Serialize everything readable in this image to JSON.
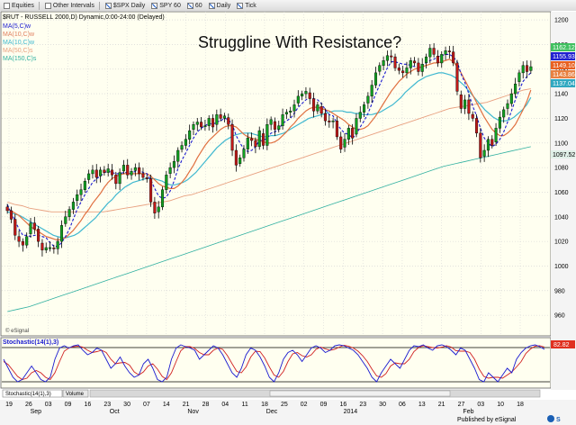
{
  "toolbar": {
    "items": [
      {
        "label": "Equities",
        "icon": "equities-icon"
      },
      {
        "label": "Other Intervals",
        "icon": "intervals-icon"
      },
      {
        "label": "$SPX Daily",
        "icon": "chart-icon"
      },
      {
        "label": "SPY 60",
        "icon": "chart-icon"
      },
      {
        "label": "60",
        "icon": "chart-icon"
      },
      {
        "label": "Daily",
        "icon": "chart-icon"
      },
      {
        "label": "Tick",
        "icon": "chart-icon"
      }
    ]
  },
  "header": {
    "symbol_line": "$RUT - RUSSELL 2000,D) Dynamic,0:00-24:00 (Delayed)"
  },
  "legend": [
    {
      "label": "MA(5,C)w",
      "color": "#1a1ad0"
    },
    {
      "label": "MA(10,C)w",
      "color": "#e08060"
    },
    {
      "label": "MA(10,C)w",
      "color": "#40b8d0"
    },
    {
      "label": "MA(50,C)s",
      "color": "#e8a080"
    },
    {
      "label": "MA(150,C)s",
      "color": "#30b0a0"
    }
  ],
  "price_tags": [
    {
      "value": "1162.12",
      "color": "#40c060"
    },
    {
      "value": "1155.93",
      "color": "#2020d0"
    },
    {
      "value": "1149.10",
      "color": "#e86020"
    },
    {
      "value": "1143.86",
      "color": "#e88040"
    },
    {
      "value": "1137.04",
      "color": "#30a8c0"
    },
    {
      "value": "1097.52",
      "color": "#e0f0e8"
    }
  ],
  "stoch": {
    "title": "Stochastic(14(1),3)",
    "last_value": "82.82",
    "tabs": [
      "Stochastic(14(1),3)",
      "Volume"
    ]
  },
  "footer": {
    "published": "Published by eSignal",
    "copyright": "© eSignal"
  },
  "chart_data": {
    "type": "candlestick",
    "title": "Struggline With Resistance?",
    "ylim": [
      944,
      1203
    ],
    "y_ticks": [
      1200,
      1180,
      1160,
      1140,
      1120,
      1100,
      1080,
      1060,
      1040,
      1020,
      1000,
      980,
      960
    ],
    "x_tick_labels": [
      "19",
      "26",
      "03",
      "09",
      "16",
      "23",
      "30",
      "07",
      "14",
      "21",
      "28",
      "04",
      "11",
      "18",
      "25",
      "02",
      "09",
      "16",
      "23",
      "30",
      "06",
      "13",
      "21",
      "27",
      "03",
      "10",
      "18"
    ],
    "x_period_labels": [
      "Sep",
      "Oct",
      "Nov",
      "Dec",
      "2014",
      "Feb"
    ],
    "close": [
      1045,
      1038,
      1025,
      1020,
      1017,
      1024,
      1035,
      1030,
      1020,
      1013,
      1015,
      1015,
      1014,
      1020,
      1033,
      1040,
      1046,
      1052,
      1058,
      1062,
      1069,
      1075,
      1078,
      1072,
      1078,
      1076,
      1079,
      1074,
      1067,
      1076,
      1082,
      1074,
      1077,
      1080,
      1075,
      1072,
      1071,
      1052,
      1043,
      1048,
      1062,
      1074,
      1080,
      1085,
      1094,
      1098,
      1103,
      1110,
      1115,
      1117,
      1113,
      1114,
      1120,
      1113,
      1123,
      1120,
      1122,
      1115,
      1094,
      1082,
      1088,
      1095,
      1104,
      1102,
      1097,
      1110,
      1098,
      1115,
      1119,
      1111,
      1114,
      1123,
      1125,
      1126,
      1131,
      1138,
      1140,
      1142,
      1136,
      1126,
      1131,
      1124,
      1118,
      1117,
      1118,
      1105,
      1095,
      1103,
      1112,
      1104,
      1120,
      1125,
      1131,
      1138,
      1147,
      1157,
      1163,
      1167,
      1171,
      1170,
      1161,
      1159,
      1157,
      1161,
      1167,
      1165,
      1158,
      1164,
      1170,
      1177,
      1172,
      1165,
      1172,
      1175,
      1174,
      1165,
      1142,
      1128,
      1135,
      1124,
      1120,
      1108,
      1088,
      1094,
      1103,
      1098,
      1112,
      1121,
      1127,
      1132,
      1140,
      1148,
      1157,
      1163,
      1158,
      1162
    ],
    "ma5": [
      1050,
      1043,
      1037,
      1030,
      1025,
      1025,
      1024,
      1025,
      1025,
      1024,
      1023,
      1019,
      1016,
      1016,
      1019,
      1024,
      1030,
      1038,
      1046,
      1052,
      1058,
      1063,
      1068,
      1071,
      1073,
      1076,
      1077,
      1076,
      1075,
      1075,
      1076,
      1076,
      1075,
      1077,
      1078,
      1076,
      1075,
      1070,
      1063,
      1057,
      1055,
      1056,
      1061,
      1069,
      1079,
      1086,
      1092,
      1098,
      1104,
      1109,
      1112,
      1114,
      1116,
      1115,
      1117,
      1118,
      1120,
      1119,
      1115,
      1106,
      1100,
      1095,
      1093,
      1094,
      1097,
      1102,
      1102,
      1104,
      1108,
      1109,
      1111,
      1116,
      1118,
      1120,
      1124,
      1129,
      1132,
      1135,
      1137,
      1136,
      1135,
      1132,
      1127,
      1123,
      1122,
      1116,
      1111,
      1108,
      1107,
      1104,
      1107,
      1113,
      1118,
      1124,
      1132,
      1140,
      1147,
      1154,
      1161,
      1166,
      1166,
      1165,
      1164,
      1164,
      1163,
      1162,
      1162,
      1163,
      1165,
      1167,
      1168,
      1170,
      1171,
      1172,
      1172,
      1170,
      1166,
      1156,
      1149,
      1140,
      1130,
      1122,
      1112,
      1104,
      1100,
      1097,
      1099,
      1103,
      1109,
      1117,
      1126,
      1135,
      1143,
      1150,
      1154,
      1157
    ],
    "ma10": [
      1046,
      1045,
      1043,
      1041,
      1038,
      1035,
      1032,
      1030,
      1028,
      1026,
      1024,
      1023,
      1022,
      1021,
      1022,
      1023,
      1026,
      1029,
      1033,
      1037,
      1042,
      1046,
      1051,
      1055,
      1059,
      1064,
      1068,
      1071,
      1073,
      1074,
      1075,
      1075,
      1075,
      1075,
      1075,
      1075,
      1075,
      1073,
      1070,
      1067,
      1065,
      1064,
      1063,
      1063,
      1065,
      1068,
      1072,
      1077,
      1082,
      1088,
      1093,
      1098,
      1102,
      1105,
      1108,
      1111,
      1113,
      1114,
      1114,
      1113,
      1110,
      1107,
      1105,
      1104,
      1103,
      1102,
      1101,
      1100,
      1100,
      1101,
      1103,
      1106,
      1109,
      1113,
      1116,
      1120,
      1123,
      1126,
      1128,
      1129,
      1129,
      1128,
      1127,
      1126,
      1124,
      1122,
      1120,
      1118,
      1115,
      1113,
      1111,
      1111,
      1112,
      1114,
      1118,
      1122,
      1127,
      1132,
      1137,
      1142,
      1146,
      1150,
      1153,
      1156,
      1158,
      1160,
      1161,
      1162,
      1163,
      1164,
      1165,
      1165,
      1166,
      1167,
      1168,
      1166,
      1162,
      1157,
      1151,
      1145,
      1139,
      1133,
      1127,
      1121,
      1116,
      1111,
      1108,
      1106,
      1106,
      1108,
      1111,
      1115,
      1121,
      1127,
      1134,
      1143
    ],
    "ma20": [
      1044,
      1043,
      1042,
      1041,
      1039,
      1037,
      1035,
      1033,
      1031,
      1029,
      1027,
      1025,
      1024,
      1023,
      1023,
      1024,
      1025,
      1027,
      1030,
      1033,
      1036,
      1039,
      1043,
      1047,
      1051,
      1054,
      1058,
      1061,
      1064,
      1066,
      1068,
      1069,
      1070,
      1071,
      1071,
      1071,
      1070,
      1069,
      1067,
      1066,
      1066,
      1067,
      1068,
      1070,
      1073,
      1076,
      1080,
      1084,
      1088,
      1092,
      1096,
      1099,
      1102,
      1104,
      1106,
      1107,
      1108,
      1108,
      1108,
      1107,
      1106,
      1105,
      1105,
      1106,
      1106,
      1107,
      1108,
      1110,
      1112,
      1114,
      1116,
      1118,
      1120,
      1121,
      1122,
      1123,
      1124,
      1125,
      1126,
      1126,
      1126,
      1125,
      1125,
      1124,
      1124,
      1123,
      1123,
      1123,
      1124,
      1125,
      1127,
      1129,
      1131,
      1134,
      1137,
      1141,
      1144,
      1147,
      1150,
      1152,
      1154,
      1155,
      1156,
      1157,
      1157,
      1156,
      1155,
      1153,
      1150,
      1147,
      1143,
      1139,
      1135,
      1131,
      1127,
      1124,
      1121,
      1119,
      1118,
      1118,
      1119,
      1121,
      1124,
      1127,
      1131,
      1137
    ],
    "ma50": [
      1052,
      1050,
      1049,
      1047,
      1046,
      1045,
      1044,
      1044,
      1044,
      1044,
      1044,
      1044,
      1044,
      1044,
      1045,
      1046,
      1047,
      1048,
      1049,
      1050,
      1051,
      1052,
      1053,
      1055,
      1057,
      1058,
      1060,
      1062,
      1064,
      1066,
      1068,
      1070,
      1072,
      1074,
      1076,
      1078,
      1080,
      1082,
      1084,
      1086,
      1088,
      1090,
      1092,
      1094,
      1096,
      1098,
      1100,
      1102,
      1104,
      1106,
      1108,
      1110,
      1112,
      1114,
      1116,
      1118,
      1120,
      1122,
      1124,
      1126,
      1128,
      1129,
      1130,
      1131,
      1132,
      1133,
      1135,
      1137,
      1139,
      1141,
      1143,
      1144
    ],
    "ma150": [
      963,
      965,
      967,
      970,
      973,
      976,
      979,
      982,
      985,
      988,
      991,
      994,
      997,
      1000,
      1003,
      1006,
      1009,
      1012,
      1015,
      1018,
      1021,
      1024,
      1027,
      1030,
      1033,
      1036,
      1039,
      1042,
      1045,
      1048,
      1051,
      1054,
      1057,
      1060,
      1063,
      1066,
      1069,
      1072,
      1075,
      1078,
      1081,
      1083,
      1085,
      1087,
      1089,
      1091,
      1093,
      1095,
      1097
    ],
    "stoch_k": [
      60,
      40,
      20,
      10,
      15,
      30,
      45,
      30,
      15,
      10,
      20,
      60,
      85,
      90,
      85,
      90,
      92,
      80,
      70,
      75,
      85,
      80,
      60,
      40,
      50,
      65,
      45,
      30,
      20,
      25,
      50,
      60,
      40,
      15,
      10,
      20,
      60,
      85,
      92,
      88,
      85,
      80,
      60,
      70,
      80,
      90,
      85,
      70,
      50,
      30,
      20,
      40,
      70,
      85,
      80,
      65,
      45,
      20,
      10,
      30,
      60,
      75,
      80,
      70,
      55,
      70,
      85,
      90,
      85,
      75,
      80,
      90,
      92,
      90,
      85,
      80,
      70,
      55,
      40,
      20,
      10,
      30,
      45,
      60,
      50,
      40,
      60,
      80,
      90,
      88,
      92,
      85,
      80,
      90,
      92,
      88,
      80,
      70,
      85,
      80,
      60,
      40,
      15,
      10,
      30,
      20,
      10,
      25,
      40,
      30,
      60,
      75,
      85,
      90,
      92,
      88,
      82
    ],
    "stoch_d": [
      55,
      48,
      35,
      22,
      15,
      18,
      30,
      35,
      30,
      20,
      15,
      30,
      55,
      78,
      85,
      88,
      89,
      87,
      80,
      75,
      77,
      80,
      75,
      60,
      50,
      52,
      53,
      47,
      32,
      25,
      32,
      45,
      50,
      38,
      22,
      15,
      30,
      55,
      79,
      88,
      88,
      84,
      75,
      70,
      70,
      80,
      85,
      82,
      68,
      50,
      33,
      30,
      43,
      65,
      78,
      77,
      63,
      43,
      25,
      20,
      33,
      55,
      72,
      75,
      68,
      65,
      70,
      82,
      87,
      83,
      80,
      82,
      87,
      91,
      89,
      85,
      78,
      68,
      55,
      38,
      23,
      20,
      28,
      45,
      52,
      50,
      50,
      60,
      77,
      86,
      90,
      88,
      86,
      85,
      87,
      90,
      87,
      79,
      78,
      78,
      75,
      60,
      38,
      22,
      18,
      20,
      20,
      18,
      25,
      32,
      43,
      55,
      73,
      83,
      89,
      90,
      87
    ]
  }
}
